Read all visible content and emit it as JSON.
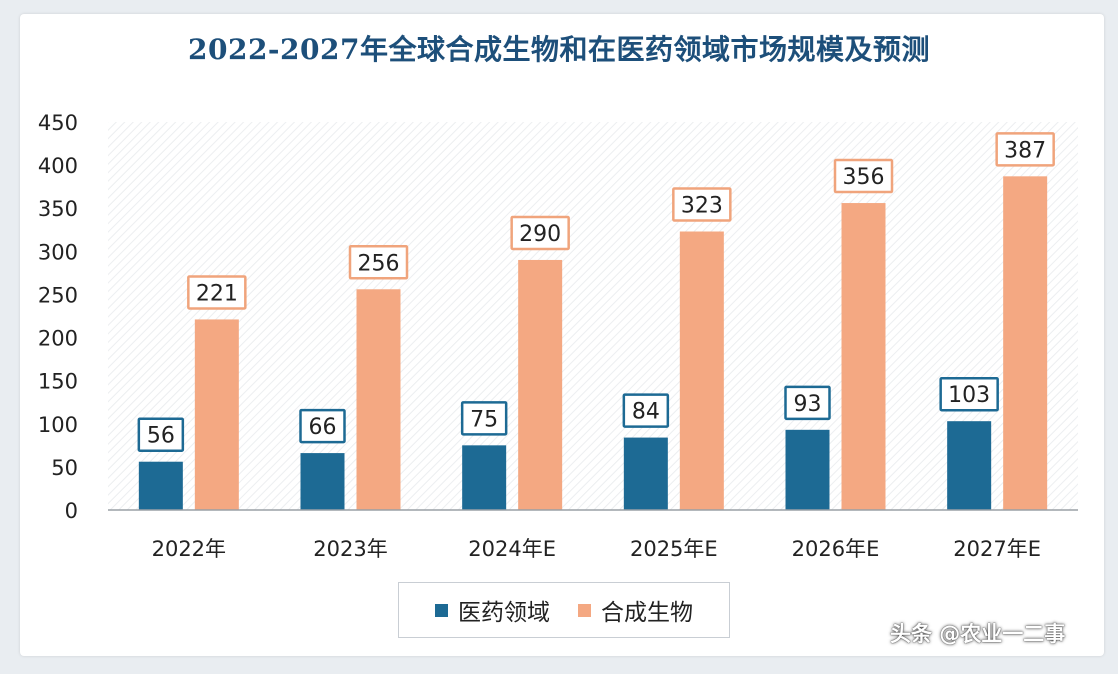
{
  "chart_data": {
    "type": "bar",
    "title": "2022-2027年全球合成生物和在医药领域市场规模及预测",
    "categories": [
      "2022年",
      "2023年",
      "2024年E",
      "2025年E",
      "2026年E",
      "2027年E"
    ],
    "series": [
      {
        "name": "医药领域",
        "values": [
          56,
          66,
          75,
          84,
          93,
          103
        ],
        "color": "#1d6a94"
      },
      {
        "name": "合成生物",
        "values": [
          221,
          256,
          290,
          323,
          356,
          387
        ],
        "color": "#f4a882"
      }
    ],
    "ylim": [
      0,
      450
    ],
    "yticks": [
      0,
      50,
      100,
      150,
      200,
      250,
      300,
      350,
      400,
      450
    ],
    "xlabel": "",
    "ylabel": "",
    "grid": false,
    "legend": "bottom-center"
  },
  "watermark": "头条 @农业一二事",
  "legend_labels": {
    "pharma": "医药领域",
    "synbio": "合成生物"
  }
}
